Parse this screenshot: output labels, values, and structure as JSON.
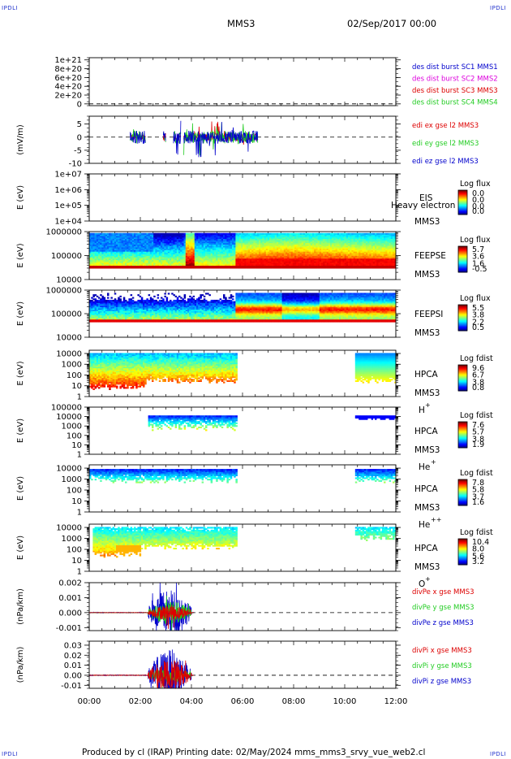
{
  "corner_label": "IPDLI",
  "header": {
    "probe": "MMS3",
    "date": "02/Sep/2017 00:00"
  },
  "footer": {
    "text": "Produced by cl (IRAP)   Printing date: 02/May/2024   mms_mms3_srvy_vue_web2.cl"
  },
  "colors": {
    "red": "#dd0000",
    "green": "#22cc22",
    "blue": "#0000cc",
    "magenta": "#dd00dd"
  },
  "chart_data": [
    {
      "type": "line",
      "name": "dist",
      "yticks": [
        "1e+21",
        "8e+20",
        "6e+20",
        "4e+20",
        "2e+20",
        "0"
      ],
      "ytick_values": [
        1e+21,
        8e+20,
        6e+20,
        4e+20,
        2e+20,
        0
      ],
      "ylim": [
        -4e+19,
        1.05e+21
      ],
      "dashed_zero": true,
      "legend": [
        {
          "text": "des dist burst SC1 MMS1",
          "color": "#0000cc"
        },
        {
          "text": "des dist burst SC2 MMS2",
          "color": "#dd00dd"
        },
        {
          "text": "des dist burst SC3 MMS3",
          "color": "#dd0000"
        },
        {
          "text": "des dist burst SC4 MMS4",
          "color": "#22cc22"
        }
      ]
    },
    {
      "type": "line",
      "name": "edi",
      "ylabel": "(mV/m)",
      "yticks": [
        "5",
        "0",
        "-5",
        "-10"
      ],
      "ytick_values": [
        5,
        0,
        -5,
        -10
      ],
      "ylim": [
        -10,
        8
      ],
      "dashed_zero": true,
      "x_start_h": 1.6,
      "x_end_h": 6.6,
      "series": [
        {
          "name": "ex",
          "color": "#dd0000",
          "amp": 1.5
        },
        {
          "name": "ey",
          "color": "#22cc22",
          "amp": 2.5
        },
        {
          "name": "ez",
          "color": "#0000cc",
          "amp": 2.5
        }
      ],
      "legend": [
        {
          "text": "edi ex gse l2 MMS3",
          "color": "#dd0000"
        },
        {
          "text": "edi ey gse l2 MMS3",
          "color": "#22cc22"
        },
        {
          "text": "edi ez gse l2 MMS3",
          "color": "#0000cc"
        }
      ]
    },
    {
      "type": "heatmap",
      "name": "eis",
      "ylabel": "E (eV)",
      "yticks": [
        "1e+07",
        "1e+06",
        "1e+05",
        "1e+04"
      ],
      "ytick_values": [
        7,
        6,
        5,
        4
      ],
      "ylim": [
        4,
        7
      ],
      "instrument": [
        "EIS",
        "MMS3"
      ],
      "overlap_text": "Heavy electron to",
      "colorbar": {
        "title": "Log flux",
        "ticks": [
          "0.0",
          "0.0",
          "0.0",
          "0.0"
        ]
      },
      "empty": true
    },
    {
      "type": "heatmap",
      "name": "feepse",
      "ylabel": "E (eV)",
      "yticks": [
        "1000000",
        "100000",
        "10000"
      ],
      "ytick_values": [
        6,
        5,
        4
      ],
      "ylim": [
        4,
        6
      ],
      "instrument": [
        "FEEPSE",
        "MMS3"
      ],
      "colorbar": {
        "title": "Log flux",
        "ticks": [
          "5.7",
          "3.6",
          "1.6",
          "-0.5"
        ]
      },
      "x_start_h": 0,
      "x_end_h": 12,
      "e_low": 4.45,
      "e_high": 5.92
    },
    {
      "type": "heatmap",
      "name": "feepsi",
      "ylabel": "E (eV)",
      "yticks": [
        "1000000",
        "100000",
        "10000"
      ],
      "ytick_values": [
        6,
        5,
        4
      ],
      "ylim": [
        4,
        6
      ],
      "instrument": [
        "FEEPSI",
        "MMS3"
      ],
      "colorbar": {
        "title": "Log flux",
        "ticks": [
          "5.5",
          "3.8",
          "2.2",
          "0.5"
        ]
      },
      "x_start_h": 0,
      "x_end_h": 12,
      "e_low": 4.65,
      "e_high": 5.9
    },
    {
      "type": "heatmap",
      "name": "hpca_h",
      "ylabel": "E (eV)",
      "yticks": [
        "10000",
        "1000",
        "100",
        "10",
        "1"
      ],
      "ytick_values": [
        4,
        3,
        2,
        1,
        0
      ],
      "ylim": [
        0,
        4.3
      ],
      "instrument": [
        "HPCA",
        "MMS3"
      ],
      "species": "H",
      "species_sup": "+",
      "colorbar": {
        "title": "Log fdist",
        "ticks": [
          "9.6",
          "6.7",
          "3.8",
          "0.8"
        ]
      },
      "segments": [
        [
          0,
          5.75
        ],
        [
          10.4,
          12
        ]
      ]
    },
    {
      "type": "heatmap",
      "name": "hpca_he",
      "ylabel": "E (eV)",
      "yticks": [
        "100000",
        "10000",
        "1000",
        "100",
        "10",
        "1"
      ],
      "ytick_values": [
        5,
        4,
        3,
        2,
        1,
        0
      ],
      "ylim": [
        0,
        5
      ],
      "instrument": [
        "HPCA",
        "MMS3"
      ],
      "species": "He",
      "species_sup": "+",
      "colorbar": {
        "title": "Log fdist",
        "ticks": [
          "7.6",
          "5.7",
          "3.8",
          "1.9"
        ]
      },
      "segments": [
        [
          2.3,
          5.75
        ],
        [
          10.4,
          12
        ]
      ]
    },
    {
      "type": "heatmap",
      "name": "hpca_hepp",
      "ylabel": "E (eV)",
      "yticks": [
        "10000",
        "1000",
        "100",
        "10",
        "1"
      ],
      "ytick_values": [
        4,
        3,
        2,
        1,
        0
      ],
      "ylim": [
        0,
        4.3
      ],
      "instrument": [
        "HPCA",
        "MMS3"
      ],
      "species": "He",
      "species_sup": "++",
      "colorbar": {
        "title": "Log fdist",
        "ticks": [
          "7.8",
          "5.8",
          "3.7",
          "1.6"
        ]
      },
      "segments": [
        [
          0,
          5.75
        ],
        [
          10.4,
          12
        ]
      ]
    },
    {
      "type": "heatmap",
      "name": "hpca_o",
      "ylabel": "E (eV)",
      "yticks": [
        "10000",
        "1000",
        "100",
        "10",
        "1"
      ],
      "ytick_values": [
        4,
        3,
        2,
        1,
        0
      ],
      "ylim": [
        0,
        4.3
      ],
      "instrument": [
        "HPCA",
        "MMS3"
      ],
      "species": "O",
      "species_sup": "+",
      "colorbar": {
        "title": "Log fdist",
        "ticks": [
          "10.4",
          "8.0",
          "5.6",
          "3.2"
        ]
      },
      "segments": [
        [
          0.1,
          5.75
        ],
        [
          10.4,
          12
        ]
      ]
    },
    {
      "type": "line",
      "name": "divpe",
      "ylabel": "(nPa/km)",
      "yticks": [
        "0.002",
        "0.001",
        "0.000",
        "-0.001"
      ],
      "ytick_values": [
        0.002,
        0.001,
        0,
        -0.001
      ],
      "ylim": [
        -0.0012,
        0.002
      ],
      "dashed_zero": true,
      "x_start_h": 0,
      "x_end_h": 4.1,
      "burst": [
        2.3,
        4.0
      ],
      "series": [
        {
          "name": "x",
          "color": "#dd0000",
          "amp": 0.0004
        },
        {
          "name": "y",
          "color": "#22cc22",
          "amp": 0.0006
        },
        {
          "name": "z",
          "color": "#0000cc",
          "amp": 0.0012
        }
      ],
      "legend": [
        {
          "text": "divPe x gse MMS3",
          "color": "#dd0000"
        },
        {
          "text": "divPe y gse MMS3",
          "color": "#22cc22"
        },
        {
          "text": "divPe z gse MMS3",
          "color": "#0000cc"
        }
      ]
    },
    {
      "type": "line",
      "name": "divpi",
      "ylabel": "(nPa/km)",
      "yticks": [
        "0.03",
        "0.02",
        "0.01",
        "0.00",
        "-0.01"
      ],
      "ytick_values": [
        0.03,
        0.02,
        0.01,
        0,
        -0.01
      ],
      "ylim": [
        -0.013,
        0.034
      ],
      "dashed_zero": true,
      "x_start_h": 0,
      "x_end_h": 4.1,
      "burst": [
        2.3,
        4.0
      ],
      "series": [
        {
          "name": "x",
          "color": "#dd0000",
          "amp": 0.012
        },
        {
          "name": "y",
          "color": "#22cc22",
          "amp": 0.006
        },
        {
          "name": "z",
          "color": "#0000cc",
          "amp": 0.02
        }
      ],
      "legend": [
        {
          "text": "divPi x gse MMS3",
          "color": "#dd0000"
        },
        {
          "text": "divPi y gse MMS3",
          "color": "#22cc22"
        },
        {
          "text": "divPi z gse MMS3",
          "color": "#0000cc"
        }
      ]
    }
  ],
  "xaxis": {
    "ticks": [
      "00:00",
      "02:00",
      "04:00",
      "06:00",
      "08:00",
      "10:00",
      "12:00"
    ],
    "tick_hours": [
      0,
      2,
      4,
      6,
      8,
      10,
      12
    ],
    "range_hours": [
      0,
      12
    ]
  }
}
